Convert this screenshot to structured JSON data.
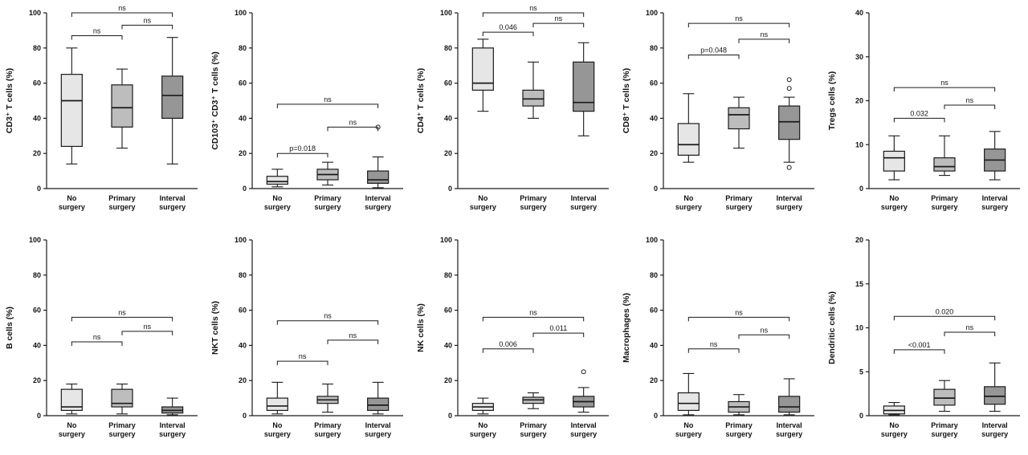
{
  "figure": {
    "description_groups": [
      "No surgery",
      "Primary surgery",
      "Interval surgery"
    ],
    "rows": 2,
    "cols": 5
  },
  "colors": {
    "no_surgery": "#e6e6e6",
    "primary_surgery": "#bdbdbd",
    "interval_surgery": "#969696",
    "stroke": "#1a1a1a",
    "background": "#ffffff"
  },
  "chart_data": [
    {
      "type": "box",
      "ylabel": "CD3⁺ T cells (%)",
      "ylim": [
        0,
        100
      ],
      "yticks": [
        0,
        20,
        40,
        60,
        80,
        100
      ],
      "categories": [
        "No surgery",
        "Primary surgery",
        "Interval surgery"
      ],
      "boxes": [
        {
          "group": "No surgery",
          "whisker_low": 14,
          "q1": 24,
          "median": 50,
          "q3": 65,
          "whisker_high": 80,
          "outliers": []
        },
        {
          "group": "Primary surgery",
          "whisker_low": 23,
          "q1": 35,
          "median": 46,
          "q3": 59,
          "whisker_high": 68,
          "outliers": []
        },
        {
          "group": "Interval surgery",
          "whisker_low": 14,
          "q1": 40,
          "median": 53,
          "q3": 64,
          "whisker_high": 86,
          "outliers": []
        }
      ],
      "significance": [
        {
          "between": [
            0,
            1
          ],
          "label": "ns",
          "bracket_y": 87
        },
        {
          "between": [
            1,
            2
          ],
          "label": "ns",
          "bracket_y": 93
        },
        {
          "between": [
            0,
            2
          ],
          "label": "ns",
          "bracket_y": 100
        }
      ]
    },
    {
      "type": "box",
      "ylabel": "CD103⁺ CD3⁺ T cells (%)",
      "ylim": [
        0,
        100
      ],
      "yticks": [
        0,
        20,
        40,
        60,
        80,
        100
      ],
      "categories": [
        "No surgery",
        "Primary surgery",
        "Interval surgery"
      ],
      "boxes": [
        {
          "group": "No surgery",
          "whisker_low": 1,
          "q1": 2.5,
          "median": 4,
          "q3": 7,
          "whisker_high": 11,
          "outliers": []
        },
        {
          "group": "Primary surgery",
          "whisker_low": 2,
          "q1": 5,
          "median": 8,
          "q3": 11,
          "whisker_high": 15,
          "outliers": []
        },
        {
          "group": "Interval surgery",
          "whisker_low": 0.5,
          "q1": 3,
          "median": 5,
          "q3": 10,
          "whisker_high": 18,
          "outliers": [
            35
          ]
        }
      ],
      "significance": [
        {
          "between": [
            0,
            1
          ],
          "label": "p=0.018",
          "bracket_y": 20
        },
        {
          "between": [
            1,
            2
          ],
          "label": "ns",
          "bracket_y": 35
        },
        {
          "between": [
            0,
            2
          ],
          "label": "ns",
          "bracket_y": 48
        }
      ]
    },
    {
      "type": "box",
      "ylabel": "CD4⁺ T cells (%)",
      "ylim": [
        0,
        100
      ],
      "yticks": [
        0,
        20,
        40,
        60,
        80,
        100
      ],
      "categories": [
        "No surgery",
        "Primary surgery",
        "Interval surgery"
      ],
      "boxes": [
        {
          "group": "No surgery",
          "whisker_low": 44,
          "q1": 56,
          "median": 60,
          "q3": 80,
          "whisker_high": 85,
          "outliers": []
        },
        {
          "group": "Primary surgery",
          "whisker_low": 40,
          "q1": 47,
          "median": 51,
          "q3": 56,
          "whisker_high": 72,
          "outliers": []
        },
        {
          "group": "Interval surgery",
          "whisker_low": 30,
          "q1": 44,
          "median": 49,
          "q3": 72,
          "whisker_high": 83,
          "outliers": []
        }
      ],
      "significance": [
        {
          "between": [
            0,
            1
          ],
          "label": "0.046",
          "bracket_y": 89
        },
        {
          "between": [
            1,
            2
          ],
          "label": "ns",
          "bracket_y": 94
        },
        {
          "between": [
            0,
            2
          ],
          "label": "ns",
          "bracket_y": 100
        }
      ]
    },
    {
      "type": "box",
      "ylabel": "CD8⁺ T cells (%)",
      "ylim": [
        0,
        100
      ],
      "yticks": [
        0,
        20,
        40,
        60,
        80,
        100
      ],
      "categories": [
        "No surgery",
        "Primary surgery",
        "Interval surgery"
      ],
      "boxes": [
        {
          "group": "No surgery",
          "whisker_low": 15,
          "q1": 19,
          "median": 25,
          "q3": 37,
          "whisker_high": 54,
          "outliers": []
        },
        {
          "group": "Primary surgery",
          "whisker_low": 23,
          "q1": 34,
          "median": 42,
          "q3": 46,
          "whisker_high": 52,
          "outliers": []
        },
        {
          "group": "Interval surgery",
          "whisker_low": 15,
          "q1": 28,
          "median": 38,
          "q3": 47,
          "whisker_high": 52,
          "outliers": [
            62,
            57,
            12
          ]
        }
      ],
      "significance": [
        {
          "between": [
            0,
            1
          ],
          "label": "p=0.048",
          "bracket_y": 76
        },
        {
          "between": [
            1,
            2
          ],
          "label": "ns",
          "bracket_y": 85
        },
        {
          "between": [
            0,
            2
          ],
          "label": "ns",
          "bracket_y": 94
        }
      ]
    },
    {
      "type": "box",
      "ylabel": "Tregs cells (%)",
      "ylim": [
        0,
        40
      ],
      "yticks": [
        0,
        10,
        20,
        30,
        40
      ],
      "categories": [
        "No surgery",
        "Primary surgery",
        "Interval surgery"
      ],
      "boxes": [
        {
          "group": "No surgery",
          "whisker_low": 2,
          "q1": 4,
          "median": 7,
          "q3": 8.5,
          "whisker_high": 12,
          "outliers": []
        },
        {
          "group": "Primary surgery",
          "whisker_low": 3,
          "q1": 4,
          "median": 5,
          "q3": 7,
          "whisker_high": 12,
          "outliers": []
        },
        {
          "group": "Interval surgery",
          "whisker_low": 2,
          "q1": 4,
          "median": 6.5,
          "q3": 9,
          "whisker_high": 13,
          "outliers": []
        }
      ],
      "significance": [
        {
          "between": [
            0,
            1
          ],
          "label": "0.032",
          "bracket_y": 16
        },
        {
          "between": [
            1,
            2
          ],
          "label": "ns",
          "bracket_y": 19
        },
        {
          "between": [
            0,
            2
          ],
          "label": "ns",
          "bracket_y": 23
        }
      ]
    },
    {
      "type": "box",
      "ylabel": "B cells (%)",
      "ylim": [
        0,
        100
      ],
      "yticks": [
        0,
        20,
        40,
        60,
        80,
        100
      ],
      "categories": [
        "No surgery",
        "Primary surgery",
        "Interval surgery"
      ],
      "boxes": [
        {
          "group": "No surgery",
          "whisker_low": 1,
          "q1": 3,
          "median": 5,
          "q3": 15,
          "whisker_high": 18,
          "outliers": []
        },
        {
          "group": "Primary surgery",
          "whisker_low": 1,
          "q1": 5,
          "median": 7,
          "q3": 15,
          "whisker_high": 18,
          "outliers": []
        },
        {
          "group": "Interval surgery",
          "whisker_low": 0.5,
          "q1": 1.5,
          "median": 3,
          "q3": 5,
          "whisker_high": 10,
          "outliers": []
        }
      ],
      "significance": [
        {
          "between": [
            0,
            1
          ],
          "label": "ns",
          "bracket_y": 42
        },
        {
          "between": [
            1,
            2
          ],
          "label": "ns",
          "bracket_y": 48
        },
        {
          "between": [
            0,
            2
          ],
          "label": "ns",
          "bracket_y": 56
        }
      ]
    },
    {
      "type": "box",
      "ylabel": "NKT cells (%)",
      "ylim": [
        0,
        100
      ],
      "yticks": [
        0,
        20,
        40,
        60,
        80,
        100
      ],
      "categories": [
        "No surgery",
        "Primary surgery",
        "Interval surgery"
      ],
      "boxes": [
        {
          "group": "No surgery",
          "whisker_low": 1,
          "q1": 3,
          "median": 5.5,
          "q3": 10,
          "whisker_high": 19,
          "outliers": []
        },
        {
          "group": "Primary surgery",
          "whisker_low": 2,
          "q1": 7,
          "median": 9,
          "q3": 11,
          "whisker_high": 18,
          "outliers": []
        },
        {
          "group": "Interval surgery",
          "whisker_low": 1,
          "q1": 3,
          "median": 6,
          "q3": 10,
          "whisker_high": 19,
          "outliers": []
        }
      ],
      "significance": [
        {
          "between": [
            0,
            1
          ],
          "label": "ns",
          "bracket_y": 31
        },
        {
          "between": [
            1,
            2
          ],
          "label": "ns",
          "bracket_y": 43
        },
        {
          "between": [
            0,
            2
          ],
          "label": "ns",
          "bracket_y": 54
        }
      ]
    },
    {
      "type": "box",
      "ylabel": "NK cells (%)",
      "ylim": [
        0,
        100
      ],
      "yticks": [
        0,
        20,
        40,
        60,
        80,
        100
      ],
      "categories": [
        "No surgery",
        "Primary surgery",
        "Interval surgery"
      ],
      "boxes": [
        {
          "group": "No surgery",
          "whisker_low": 1,
          "q1": 3,
          "median": 5,
          "q3": 7,
          "whisker_high": 10,
          "outliers": []
        },
        {
          "group": "Primary surgery",
          "whisker_low": 4,
          "q1": 7,
          "median": 9,
          "q3": 10.5,
          "whisker_high": 13,
          "outliers": []
        },
        {
          "group": "Interval surgery",
          "whisker_low": 2,
          "q1": 5,
          "median": 8,
          "q3": 11,
          "whisker_high": 16,
          "outliers": [
            25
          ]
        }
      ],
      "significance": [
        {
          "between": [
            0,
            1
          ],
          "label": "0.006",
          "bracket_y": 38
        },
        {
          "between": [
            1,
            2
          ],
          "label": "0.011",
          "bracket_y": 47
        },
        {
          "between": [
            0,
            2
          ],
          "label": "ns",
          "bracket_y": 56
        }
      ]
    },
    {
      "type": "box",
      "ylabel": "Macrophages (%)",
      "ylim": [
        0,
        100
      ],
      "yticks": [
        0,
        20,
        40,
        60,
        80,
        100
      ],
      "categories": [
        "No surgery",
        "Primary surgery",
        "Interval surgery"
      ],
      "boxes": [
        {
          "group": "No surgery",
          "whisker_low": 0.5,
          "q1": 3,
          "median": 7,
          "q3": 13,
          "whisker_high": 24,
          "outliers": []
        },
        {
          "group": "Primary surgery",
          "whisker_low": 0.5,
          "q1": 2,
          "median": 5,
          "q3": 8,
          "whisker_high": 12,
          "outliers": []
        },
        {
          "group": "Interval surgery",
          "whisker_low": 0.5,
          "q1": 2,
          "median": 5,
          "q3": 11,
          "whisker_high": 21,
          "outliers": []
        }
      ],
      "significance": [
        {
          "between": [
            0,
            1
          ],
          "label": "ns",
          "bracket_y": 38
        },
        {
          "between": [
            1,
            2
          ],
          "label": "ns",
          "bracket_y": 46
        },
        {
          "between": [
            0,
            2
          ],
          "label": "ns",
          "bracket_y": 56
        }
      ]
    },
    {
      "type": "box",
      "ylabel": "Dendritic cells (%)",
      "ylim": [
        0,
        20
      ],
      "yticks": [
        0,
        5,
        10,
        15,
        20
      ],
      "categories": [
        "No surgery",
        "Primary surgery",
        "Interval surgery"
      ],
      "boxes": [
        {
          "group": "No surgery",
          "whisker_low": 0.1,
          "q1": 0.2,
          "median": 0.6,
          "q3": 1.1,
          "whisker_high": 1.5,
          "outliers": []
        },
        {
          "group": "Primary surgery",
          "whisker_low": 0.5,
          "q1": 1.2,
          "median": 2,
          "q3": 3,
          "whisker_high": 4,
          "outliers": []
        },
        {
          "group": "Interval surgery",
          "whisker_low": 0.5,
          "q1": 1.3,
          "median": 2.2,
          "q3": 3.3,
          "whisker_high": 6,
          "outliers": []
        }
      ],
      "significance": [
        {
          "between": [
            0,
            1
          ],
          "label": "<0.001",
          "bracket_y": 7.5
        },
        {
          "between": [
            1,
            2
          ],
          "label": "ns",
          "bracket_y": 9.5
        },
        {
          "between": [
            0,
            2
          ],
          "label": "0.020",
          "bracket_y": 11.3
        }
      ]
    }
  ]
}
